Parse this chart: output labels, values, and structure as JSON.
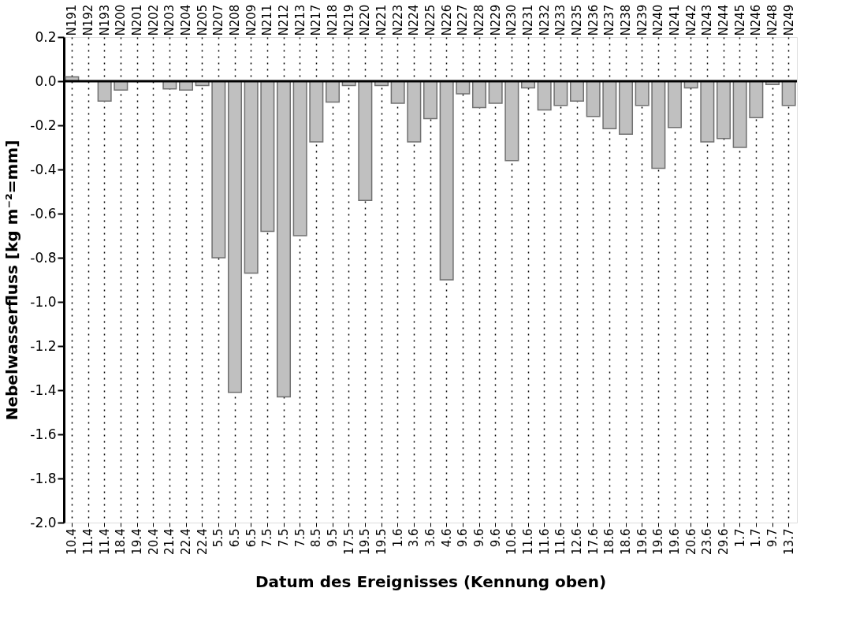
{
  "chart_data": {
    "type": "bar",
    "xlabel": "Datum des Ereignisses (Kennung oben)",
    "ylabel": "Nebelwasserfluss [kg m⁻²=mm]",
    "categories": [
      "10.4",
      "11.4",
      "11.4",
      "18.4",
      "19.4",
      "20.4",
      "21.4",
      "22.4",
      "22.4",
      "5.5",
      "6.5",
      "6.5",
      "7.5",
      "7.5",
      "7.5",
      "8.5",
      "9.5",
      "17.5",
      "19.5",
      "19.5",
      "1.6",
      "3.6",
      "3.6",
      "4.6",
      "9.6",
      "9.6",
      "9.6",
      "10.6",
      "11.6",
      "11.6",
      "11.6",
      "12.6",
      "17.6",
      "18.6",
      "18.6",
      "19.6",
      "19.6",
      "19.6",
      "20.6",
      "23.6",
      "29.6",
      "1.7",
      "1.7",
      "9.7",
      "13.7"
    ],
    "annotations": [
      "N191",
      "N192",
      "N193",
      "N200",
      "N201",
      "N202",
      "N203",
      "N204",
      "N205",
      "N207",
      "N208",
      "N209",
      "N211",
      "N212",
      "N213",
      "N217",
      "N218",
      "N219",
      "N220",
      "N221",
      "N223",
      "N224",
      "N225",
      "N226",
      "N227",
      "N228",
      "N229",
      "N230",
      "N231",
      "N232",
      "N233",
      "N235",
      "N236",
      "N237",
      "N238",
      "N239",
      "N240",
      "N241",
      "N242",
      "N243",
      "N244",
      "N245",
      "N246",
      "N248",
      "N249"
    ],
    "values": [
      0.02,
      null,
      -0.09,
      -0.04,
      null,
      null,
      -0.035,
      -0.04,
      -0.02,
      -0.8,
      -1.41,
      -0.87,
      -0.68,
      -1.43,
      -0.7,
      -0.275,
      -0.095,
      -0.02,
      -0.54,
      -0.02,
      -0.1,
      -0.275,
      -0.17,
      -0.9,
      -0.057,
      -0.12,
      -0.1,
      -0.36,
      -0.03,
      -0.13,
      -0.11,
      -0.09,
      -0.16,
      -0.215,
      -0.24,
      -0.11,
      -0.395,
      -0.21,
      -0.03,
      -0.275,
      -0.26,
      -0.3,
      -0.165,
      -0.015,
      -0.11
    ],
    "color": "#c0c0c0",
    "ylim": [
      -2.0,
      0.2
    ],
    "yticks": [
      0.2,
      {
        "value": 0,
        "label": "0.0"
      },
      -0.2,
      -0.4,
      -0.6,
      -0.8,
      {
        "value": -1,
        "label": "-1.0"
      },
      -1.2,
      -1.4,
      -1.6,
      -1.8,
      {
        "value": -2,
        "label": "-2.0"
      }
    ],
    "ref_lines": [
      {
        "axis": "y",
        "value": 0,
        "color": "#000000",
        "line_style": "solid"
      }
    ],
    "grid": "x"
  }
}
